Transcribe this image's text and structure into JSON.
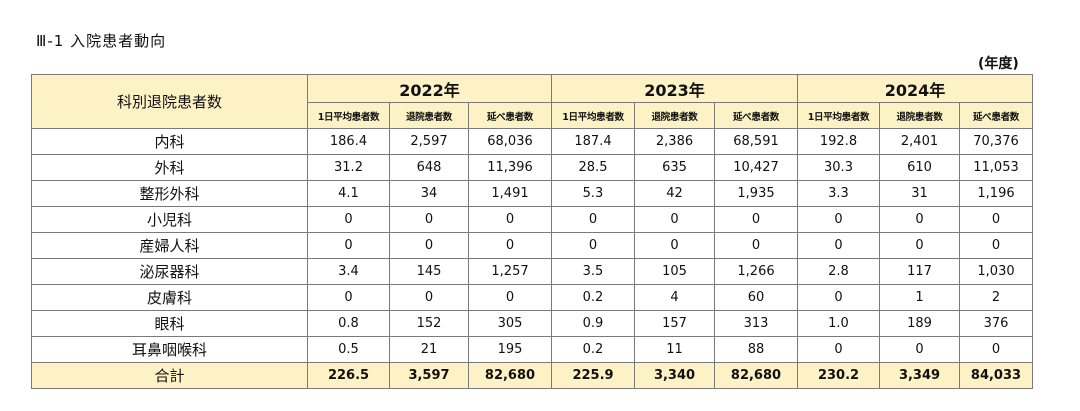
{
  "heading": "Ⅲ-1 入院患者動向",
  "unit": "(年度)",
  "table": {
    "corner": "科別退院患者数",
    "years": [
      "2022年",
      "2023年",
      "2024年"
    ],
    "subheaders": [
      "1日平均患者数",
      "退院患者数",
      "延べ患者数"
    ],
    "rows": [
      {
        "dept": "内科",
        "values": [
          "186.4",
          "2,597",
          "68,036",
          "187.4",
          "2,386",
          "68,591",
          "192.8",
          "2,401",
          "70,376"
        ]
      },
      {
        "dept": "外科",
        "values": [
          "31.2",
          "648",
          "11,396",
          "28.5",
          "635",
          "10,427",
          "30.3",
          "610",
          "11,053"
        ]
      },
      {
        "dept": "整形外科",
        "values": [
          "4.1",
          "34",
          "1,491",
          "5.3",
          "42",
          "1,935",
          "3.3",
          "31",
          "1,196"
        ]
      },
      {
        "dept": "小児科",
        "values": [
          "0",
          "0",
          "0",
          "0",
          "0",
          "0",
          "0",
          "0",
          "0"
        ]
      },
      {
        "dept": "産婦人科",
        "values": [
          "0",
          "0",
          "0",
          "0",
          "0",
          "0",
          "0",
          "0",
          "0"
        ]
      },
      {
        "dept": "泌尿器科",
        "values": [
          "3.4",
          "145",
          "1,257",
          "3.5",
          "105",
          "1,266",
          "2.8",
          "117",
          "1,030"
        ]
      },
      {
        "dept": "皮膚科",
        "values": [
          "0",
          "0",
          "0",
          "0.2",
          "4",
          "60",
          "0",
          "1",
          "2"
        ]
      },
      {
        "dept": "眼科",
        "values": [
          "0.8",
          "152",
          "305",
          "0.9",
          "157",
          "313",
          "1.0",
          "189",
          "376"
        ]
      },
      {
        "dept": "耳鼻咽喉科",
        "values": [
          "0.5",
          "21",
          "195",
          "0.2",
          "11",
          "88",
          "0",
          "0",
          "0"
        ]
      }
    ],
    "total": {
      "dept": "合計",
      "values": [
        "226.5",
        "3,597",
        "82,680",
        "225.9",
        "3,340",
        "82,680",
        "230.2",
        "3,349",
        "84,033"
      ]
    }
  },
  "colors": {
    "header_fill": "#fdf2c6",
    "grid": "#7a7a7a"
  }
}
